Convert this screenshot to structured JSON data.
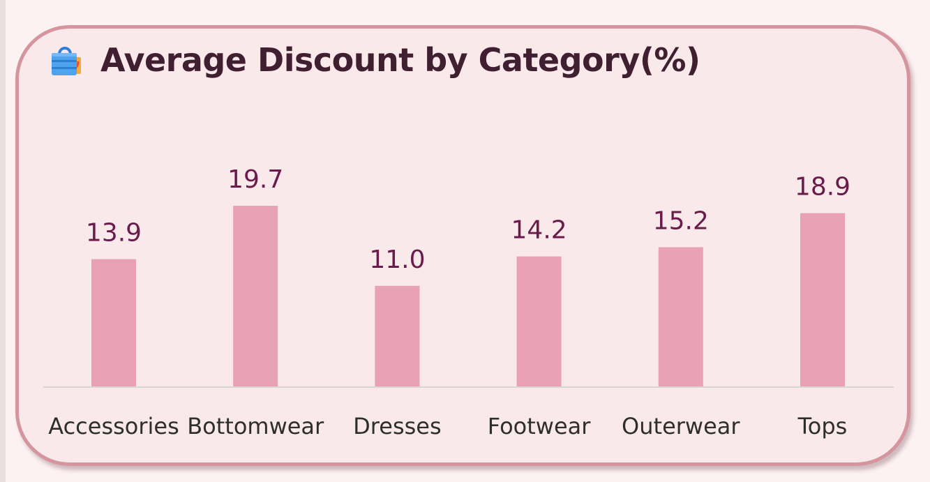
{
  "card": {
    "title": "Average Discount by Category(%)",
    "icon": "shopping-bag-icon"
  },
  "colors": {
    "bar": "#e8a1b5",
    "value_label": "#6b1b4b",
    "axis": "#d9d4d8",
    "card_border": "#d5959f",
    "card_background": "#f9e9ea"
  },
  "chart_data": {
    "type": "bar",
    "title": "Average Discount by Category(%)",
    "categories": [
      "Accessories",
      "Bottomwear",
      "Dresses",
      "Footwear",
      "Outerwear",
      "Tops"
    ],
    "values": [
      13.9,
      19.7,
      11.0,
      14.2,
      15.2,
      18.9
    ],
    "value_labels": [
      "13.9",
      "19.7",
      "11.0",
      "14.2",
      "15.2",
      "18.9"
    ],
    "xlabel": "",
    "ylabel": "",
    "ylim": [
      0,
      19.7
    ],
    "grid": false,
    "legend": "none"
  }
}
